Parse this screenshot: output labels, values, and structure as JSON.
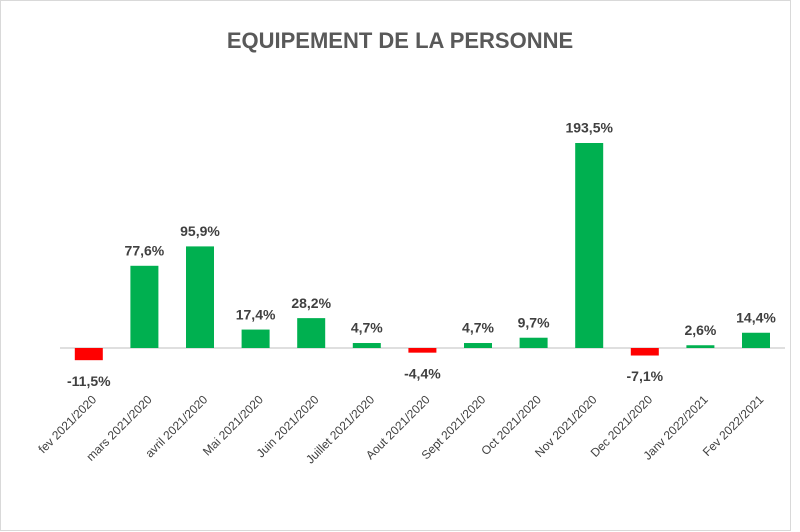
{
  "chart_data": {
    "type": "bar",
    "title": "EQUIPEMENT DE LA PERSONNE",
    "categories": [
      "fev 2021/2020",
      "mars 2021/2020",
      "avril 2021/2020",
      "Mai 2021/2020",
      "Juin 2021/2020",
      "Juillet 2021/2020",
      "Aout 2021/2020",
      "Sept 2021/2020",
      "Oct 2021/2020",
      "Nov 2021/2020",
      "Dec 2021/2020",
      "Janv 2022/2021",
      "Fev 2022/2021"
    ],
    "values": [
      -11.5,
      77.6,
      95.9,
      17.4,
      28.2,
      4.7,
      -4.4,
      4.7,
      9.7,
      193.5,
      -7.1,
      2.6,
      14.4
    ],
    "value_labels": [
      "-11,5%",
      "77,6%",
      "95,9%",
      "17,4%",
      "28,2%",
      "4,7%",
      "-4,4%",
      "4,7%",
      "9,7%",
      "193,5%",
      "-7,1%",
      "2,6%",
      "14,4%"
    ],
    "positive_color": "#00b050",
    "negative_color": "#ff0000"
  }
}
